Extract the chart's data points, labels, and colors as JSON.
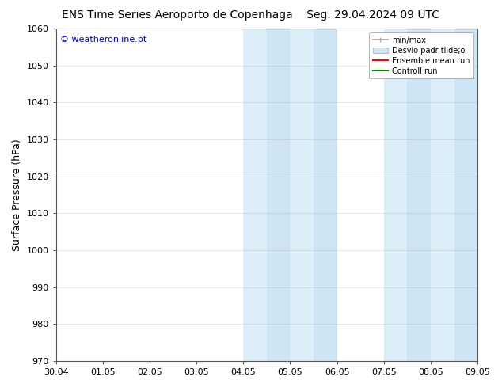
{
  "title_left": "ENS Time Series Aeroporto de Copenhaga",
  "title_right": "Seg. 29.04.2024 09 UTC",
  "ylabel": "Surface Pressure (hPa)",
  "ylim": [
    970,
    1060
  ],
  "yticks": [
    970,
    980,
    990,
    1000,
    1010,
    1020,
    1030,
    1040,
    1050,
    1060
  ],
  "xlabels": [
    "30.04",
    "01.05",
    "02.05",
    "03.05",
    "04.05",
    "05.05",
    "06.05",
    "07.05",
    "08.05",
    "09.05"
  ],
  "x_positions": [
    0,
    1,
    2,
    3,
    4,
    5,
    6,
    7,
    8,
    9
  ],
  "shaded_regions": [
    {
      "xmin": 4.0,
      "xmax": 4.5,
      "color": "#dceef8"
    },
    {
      "xmin": 4.5,
      "xmax": 5.0,
      "color": "#cde5f4"
    },
    {
      "xmin": 5.0,
      "xmax": 5.5,
      "color": "#dceef8"
    },
    {
      "xmin": 5.5,
      "xmax": 6.0,
      "color": "#cde5f4"
    },
    {
      "xmin": 7.0,
      "xmax": 7.5,
      "color": "#dceef8"
    },
    {
      "xmin": 7.5,
      "xmax": 8.0,
      "color": "#cde5f4"
    },
    {
      "xmin": 8.0,
      "xmax": 8.5,
      "color": "#dceef8"
    },
    {
      "xmin": 8.5,
      "xmax": 9.0,
      "color": "#cde5f4"
    }
  ],
  "watermark": "© weatheronline.pt",
  "watermark_color": "#0000cc",
  "background_color": "#ffffff",
  "plot_bg_color": "#ffffff",
  "legend_labels": [
    "min/max",
    "Desvio padr tilde;o",
    "Ensemble mean run",
    "Controll run"
  ],
  "legend_colors": [
    "#aaaaaa",
    "#ccddee",
    "#ff0000",
    "#008000"
  ],
  "title_fontsize": 10,
  "axis_fontsize": 9,
  "tick_fontsize": 8,
  "grid_color": "#aaaaaa",
  "grid_alpha": 0.4,
  "spine_color": "#555555"
}
